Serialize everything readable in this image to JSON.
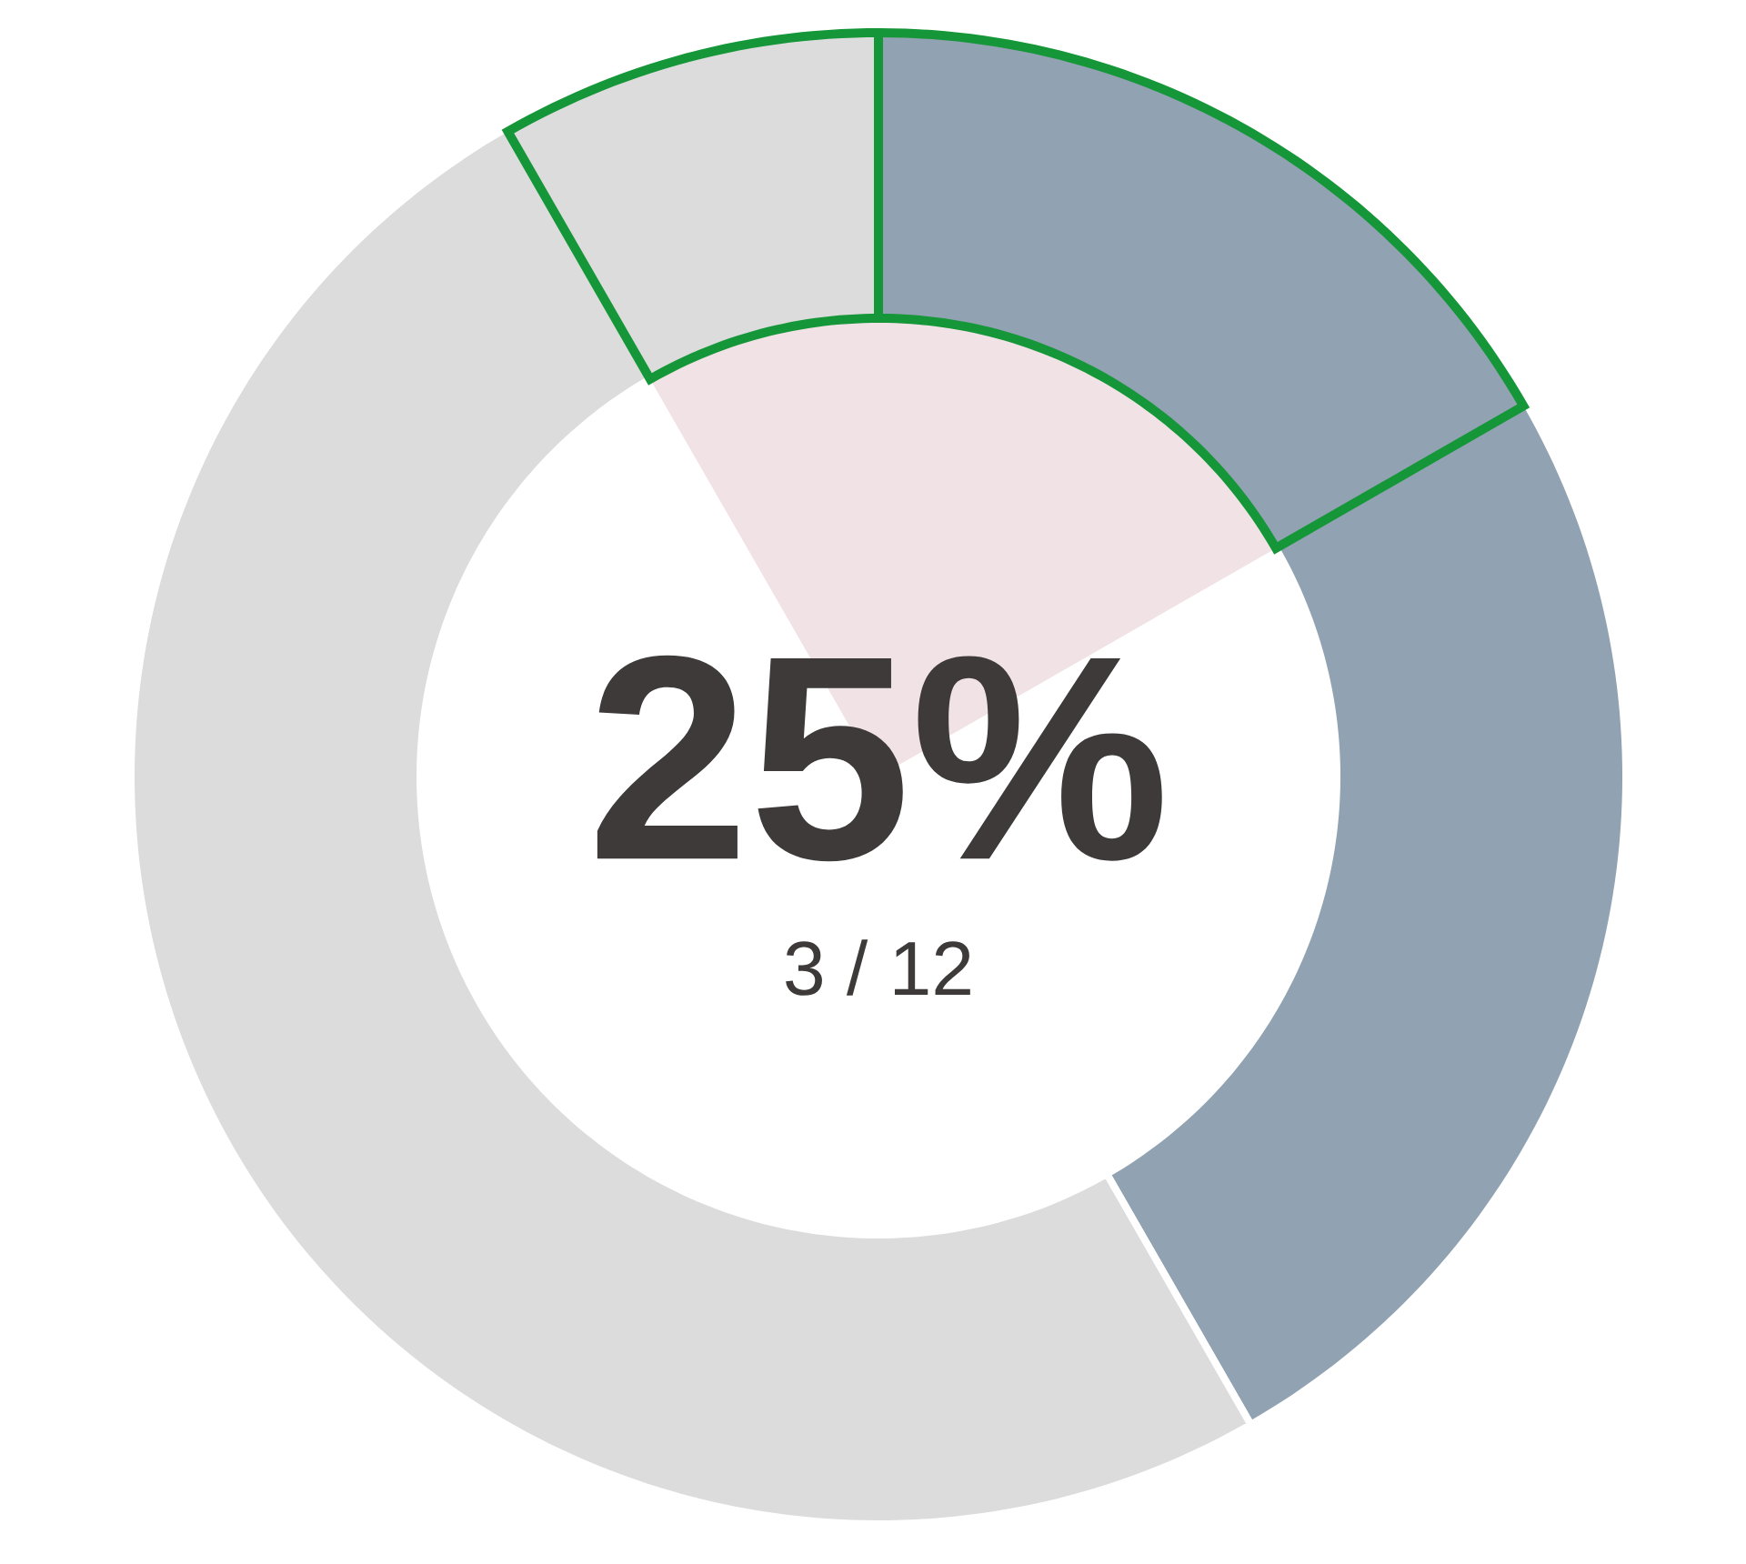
{
  "chart_data": {
    "type": "donut",
    "categories": [
      null,
      null,
      null,
      null
    ],
    "values": [
      16.7,
      25,
      50,
      8.3
    ],
    "colors": [
      "#91a2b2",
      "#91a2b2",
      "#dcdcdc",
      "#dcdcdc"
    ],
    "annotations": [
      "25%",
      "3 / 12"
    ]
  }
}
